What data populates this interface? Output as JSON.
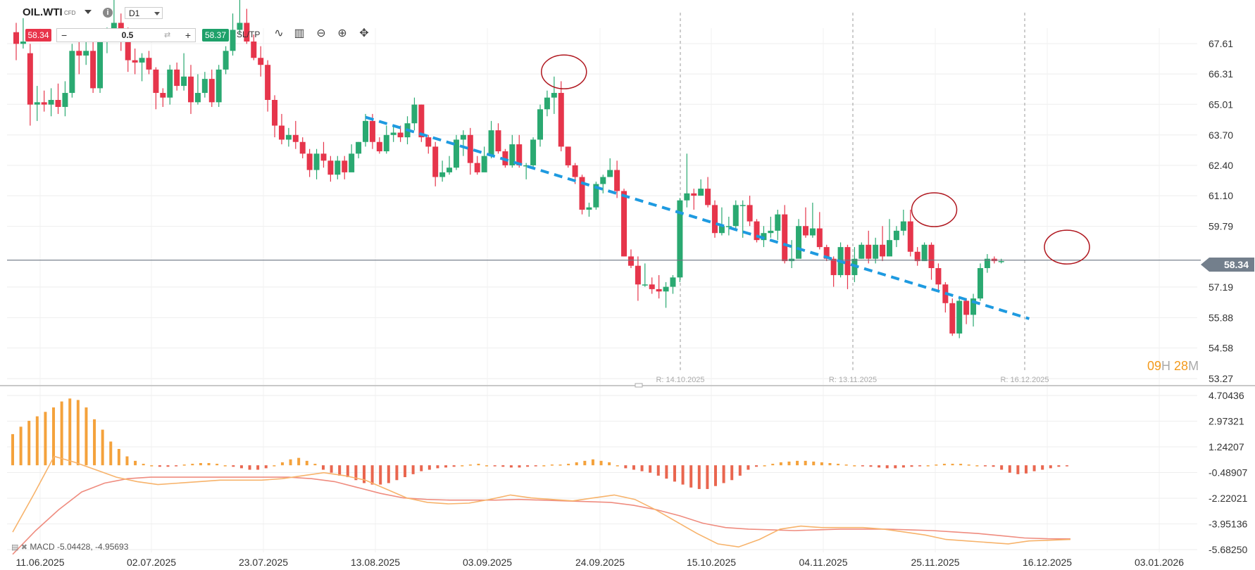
{
  "header": {
    "symbol": "OIL.WTI",
    "symbol_tag": "CFD",
    "info_icon": "info-icon",
    "timeframe": "D1",
    "sell_price": "58.34",
    "quantity": "0.5",
    "buy_price": "58.37",
    "sltp_label": "SL/TP",
    "tools": [
      "line-chart-icon",
      "candles-icon",
      "zoom-out-icon",
      "zoom-in-icon",
      "crosshair-icon"
    ]
  },
  "countdown": {
    "hours": "09",
    "hours_unit": "H",
    "minutes": "28",
    "minutes_unit": "M"
  },
  "current_price_label": "58.34",
  "macd_label": "MACD -5.04428, -4.95693",
  "colors": {
    "up": "#2aa971",
    "down": "#e6354b",
    "trendline": "#1e9ae0",
    "circle": "#b0171f",
    "macd_hist_pos": "#f4a23c",
    "macd_hist_neg": "#e9664f",
    "macd_line": "#f7b36b",
    "signal_line": "#ef8c7f"
  },
  "chart_data": {
    "type": "candlestick",
    "symbol": "OIL.WTI",
    "timeframe": "D1",
    "price_axis": {
      "ticks": [
        "67.61",
        "66.31",
        "65.01",
        "63.70",
        "62.40",
        "61.10",
        "59.79",
        "57.19",
        "55.88",
        "54.58",
        "53.27"
      ]
    },
    "date_axis": {
      "ticks": [
        "11.06.2025",
        "02.07.2025",
        "23.07.2025",
        "13.08.2025",
        "03.09.2025",
        "24.09.2025",
        "15.10.2025",
        "04.11.2025",
        "25.11.2025",
        "16.12.2025",
        "03.01.2026"
      ]
    },
    "rollover_markers": [
      "R: 14.10.2025",
      "R: 13.11.2025",
      "R: 16.12.2025"
    ],
    "last_price": 58.34,
    "candles": [
      [
        68.1,
        67.6,
        68.5,
        66.9
      ],
      [
        67.6,
        67.7,
        68.7,
        67.4
      ],
      [
        67.2,
        65.0,
        67.6,
        64.1
      ],
      [
        65.0,
        65.1,
        65.8,
        64.3
      ],
      [
        65.1,
        65.0,
        65.6,
        64.7
      ],
      [
        65.0,
        65.2,
        65.7,
        64.5
      ],
      [
        65.2,
        64.9,
        65.9,
        64.6
      ],
      [
        64.9,
        65.5,
        66.0,
        64.5
      ],
      [
        65.5,
        67.3,
        67.6,
        65.3
      ],
      [
        67.3,
        67.1,
        67.9,
        66.3
      ],
      [
        67.1,
        67.3,
        68.0,
        66.7
      ],
      [
        67.3,
        65.7,
        67.8,
        65.5
      ],
      [
        65.7,
        67.7,
        68.0,
        65.5
      ],
      [
        67.7,
        68.0,
        68.3,
        67.2
      ],
      [
        68.0,
        68.5,
        69.5,
        67.8
      ],
      [
        68.5,
        68.0,
        68.9,
        67.3
      ],
      [
        68.0,
        66.9,
        68.3,
        66.4
      ],
      [
        66.9,
        66.8,
        67.4,
        66.3
      ],
      [
        66.8,
        67.0,
        67.2,
        66.0
      ],
      [
        67.0,
        66.5,
        67.3,
        66.3
      ],
      [
        66.5,
        65.5,
        66.6,
        64.8
      ],
      [
        65.5,
        65.3,
        65.7,
        64.9
      ],
      [
        65.3,
        66.5,
        66.7,
        65.0
      ],
      [
        66.5,
        65.8,
        66.8,
        65.6
      ],
      [
        65.8,
        66.2,
        67.2,
        65.6
      ],
      [
        66.2,
        65.1,
        66.7,
        64.6
      ],
      [
        65.1,
        65.5,
        66.3,
        65.0
      ],
      [
        65.5,
        66.1,
        66.4,
        65.3
      ],
      [
        66.1,
        65.1,
        66.5,
        64.9
      ],
      [
        65.1,
        66.5,
        66.7,
        64.9
      ],
      [
        66.5,
        67.3,
        67.5,
        66.3
      ],
      [
        67.3,
        68.2,
        68.9,
        67.1
      ],
      [
        68.2,
        68.5,
        69.6,
        68.0
      ],
      [
        68.5,
        67.7,
        69.1,
        67.6
      ],
      [
        67.7,
        67.0,
        68.0,
        66.9
      ],
      [
        67.0,
        66.7,
        67.5,
        66.2
      ],
      [
        66.7,
        65.2,
        66.9,
        64.7
      ],
      [
        65.2,
        64.1,
        65.4,
        63.6
      ],
      [
        64.1,
        63.5,
        64.6,
        63.3
      ],
      [
        63.5,
        63.7,
        64.0,
        63.2
      ],
      [
        63.7,
        63.4,
        64.3,
        63.1
      ],
      [
        63.4,
        62.9,
        63.6,
        62.7
      ],
      [
        62.9,
        62.2,
        63.1,
        61.9
      ],
      [
        62.2,
        62.9,
        63.1,
        61.8
      ],
      [
        62.9,
        62.6,
        63.4,
        62.3
      ],
      [
        62.6,
        62.0,
        62.8,
        61.7
      ],
      [
        62.0,
        62.6,
        62.8,
        61.8
      ],
      [
        62.6,
        62.1,
        62.8,
        61.8
      ],
      [
        62.1,
        62.9,
        63.3,
        62.6
      ],
      [
        62.9,
        63.4,
        63.4,
        62.7
      ],
      [
        63.4,
        64.3,
        64.6,
        63.2
      ],
      [
        64.3,
        63.4,
        64.6,
        63.1
      ],
      [
        63.4,
        63.0,
        63.6,
        62.9
      ],
      [
        63.0,
        63.7,
        64.1,
        62.9
      ],
      [
        63.7,
        63.8,
        64.1,
        63.4
      ],
      [
        63.8,
        63.6,
        64.1,
        63.4
      ],
      [
        63.6,
        64.2,
        64.5,
        63.3
      ],
      [
        64.2,
        65.0,
        65.3,
        63.9
      ],
      [
        65.0,
        63.6,
        65.0,
        63.4
      ],
      [
        63.6,
        63.2,
        63.7,
        62.9
      ],
      [
        63.2,
        61.9,
        63.4,
        61.5
      ],
      [
        61.9,
        62.1,
        62.6,
        61.7
      ],
      [
        62.1,
        62.3,
        62.8,
        62.0
      ],
      [
        62.3,
        63.5,
        63.7,
        62.2
      ],
      [
        63.5,
        63.7,
        63.9,
        62.8
      ],
      [
        63.7,
        62.5,
        64.0,
        62.0
      ],
      [
        62.5,
        62.1,
        62.8,
        62.0
      ],
      [
        62.1,
        62.8,
        63.2,
        62.7
      ],
      [
        62.8,
        63.9,
        64.3,
        62.7
      ],
      [
        63.9,
        63.0,
        64.2,
        62.9
      ],
      [
        63.0,
        62.4,
        63.1,
        62.3
      ],
      [
        62.4,
        63.3,
        63.7,
        62.3
      ],
      [
        63.3,
        62.4,
        63.7,
        62.3
      ],
      [
        62.4,
        62.4,
        62.5,
        61.8
      ],
      [
        62.4,
        63.5,
        63.6,
        62.3
      ],
      [
        63.5,
        64.8,
        65.0,
        63.2
      ],
      [
        64.8,
        65.3,
        65.6,
        64.5
      ],
      [
        65.3,
        65.5,
        66.2,
        64.6
      ],
      [
        65.5,
        63.2,
        66.0,
        63.0
      ],
      [
        63.2,
        62.4,
        63.2,
        62.3
      ],
      [
        62.4,
        61.9,
        62.5,
        61.6
      ],
      [
        61.9,
        60.5,
        62.0,
        60.3
      ],
      [
        60.5,
        60.6,
        60.8,
        60.2
      ],
      [
        60.6,
        61.6,
        61.7,
        60.5
      ],
      [
        61.6,
        61.9,
        62.0,
        61.2
      ],
      [
        61.9,
        62.2,
        62.7,
        61.9
      ],
      [
        62.2,
        61.3,
        62.6,
        61.0
      ],
      [
        61.3,
        58.5,
        61.4,
        58.5
      ],
      [
        58.5,
        58.1,
        58.8,
        58.0
      ],
      [
        58.1,
        57.3,
        58.5,
        56.6
      ],
      [
        57.3,
        57.3,
        58.2,
        57.2
      ],
      [
        57.3,
        57.1,
        57.6,
        56.9
      ],
      [
        57.1,
        57.0,
        57.7,
        56.7
      ],
      [
        57.0,
        57.2,
        57.4,
        56.3
      ],
      [
        57.2,
        57.6,
        57.7,
        56.9
      ],
      [
        57.6,
        60.9,
        61.0,
        57.4
      ],
      [
        60.9,
        61.2,
        62.9,
        60.6
      ],
      [
        61.2,
        61.1,
        61.4,
        60.5
      ],
      [
        61.1,
        61.4,
        61.8,
        61.1
      ],
      [
        61.4,
        60.7,
        61.9,
        60.6
      ],
      [
        60.7,
        59.5,
        60.9,
        59.3
      ],
      [
        59.5,
        59.8,
        60.6,
        59.4
      ],
      [
        59.8,
        59.8,
        60.2,
        59.4
      ],
      [
        59.8,
        60.7,
        60.9,
        59.7
      ],
      [
        60.7,
        60.7,
        60.9,
        59.3
      ],
      [
        60.7,
        60.0,
        61.1,
        59.8
      ],
      [
        60.0,
        59.2,
        60.1,
        59.1
      ],
      [
        59.2,
        59.5,
        59.8,
        58.9
      ],
      [
        59.5,
        59.6,
        60.2,
        59.3
      ],
      [
        59.6,
        60.3,
        60.5,
        59.2
      ],
      [
        60.3,
        58.3,
        60.7,
        58.2
      ],
      [
        58.3,
        58.4,
        59.2,
        58.0
      ],
      [
        58.4,
        59.8,
        60.1,
        58.5
      ],
      [
        59.8,
        59.4,
        60.6,
        59.3
      ],
      [
        59.4,
        59.7,
        60.8,
        59.3
      ],
      [
        59.7,
        58.9,
        60.4,
        58.8
      ],
      [
        58.9,
        58.4,
        59.0,
        58.3
      ],
      [
        58.4,
        57.7,
        58.5,
        57.2
      ],
      [
        57.7,
        58.9,
        59.1,
        57.6
      ],
      [
        58.9,
        57.7,
        59.0,
        57.1
      ],
      [
        57.7,
        58.4,
        58.9,
        57.4
      ],
      [
        58.4,
        59.0,
        59.1,
        58.4
      ],
      [
        59.0,
        58.4,
        59.6,
        58.2
      ],
      [
        58.4,
        59.0,
        59.3,
        58.2
      ],
      [
        59.0,
        58.5,
        59.8,
        58.3
      ],
      [
        58.5,
        59.2,
        60.1,
        58.8
      ],
      [
        59.2,
        59.6,
        59.8,
        58.9
      ],
      [
        59.6,
        60.0,
        60.5,
        59.4
      ],
      [
        60.0,
        58.7,
        60.5,
        58.5
      ],
      [
        58.7,
        58.3,
        58.9,
        58.1
      ],
      [
        58.3,
        59.0,
        59.1,
        58.3
      ],
      [
        59.0,
        58.0,
        59.1,
        57.5
      ],
      [
        58.0,
        57.3,
        58.2,
        57.0
      ],
      [
        57.3,
        56.5,
        57.4,
        56.1
      ],
      [
        56.5,
        55.2,
        56.7,
        55.1
      ],
      [
        55.2,
        56.6,
        56.7,
        55.0
      ],
      [
        56.6,
        56.0,
        56.7,
        55.6
      ],
      [
        56.0,
        56.7,
        56.9,
        55.5
      ],
      [
        56.7,
        58.0,
        58.2,
        56.6
      ],
      [
        58.0,
        58.4,
        58.6,
        57.8
      ],
      [
        58.4,
        58.3,
        58.5,
        58.2
      ],
      [
        58.3,
        58.3,
        58.4,
        58.2
      ]
    ],
    "macd": {
      "label": "MACD -5.04428, -4.95693",
      "axis_ticks": [
        "4.70436",
        "2.97321",
        "1.24207",
        "-0.48907",
        "-2.22021",
        "-3.95136",
        "-5.68250"
      ],
      "histogram": [
        2.1,
        2.6,
        3.0,
        3.3,
        3.6,
        3.9,
        4.3,
        4.5,
        4.4,
        3.9,
        3.1,
        2.4,
        1.6,
        1.1,
        0.6,
        0.3,
        0.1,
        0.0,
        -0.1,
        -0.1,
        -0.05,
        0.05,
        0.1,
        0.15,
        0.15,
        0.1,
        0.0,
        -0.1,
        -0.2,
        -0.3,
        -0.3,
        -0.2,
        0.0,
        0.2,
        0.4,
        0.5,
        0.3,
        0.1,
        -0.3,
        -0.5,
        -0.7,
        -0.8,
        -1.0,
        -1.2,
        -1.3,
        -1.3,
        -1.2,
        -1.0,
        -0.8,
        -0.6,
        -0.4,
        -0.3,
        -0.2,
        -0.15,
        -0.1,
        0.0,
        0.05,
        0.1,
        0.0,
        -0.05,
        -0.1,
        -0.15,
        -0.15,
        -0.1,
        -0.05,
        0.0,
        0.05,
        0.05,
        0.1,
        0.2,
        0.3,
        0.4,
        0.3,
        0.2,
        0.0,
        -0.2,
        -0.3,
        -0.4,
        -0.5,
        -0.7,
        -0.9,
        -1.1,
        -1.3,
        -1.5,
        -1.6,
        -1.6,
        -1.4,
        -1.2,
        -1.0,
        -0.7,
        -0.3,
        -0.1,
        0.0,
        0.1,
        0.2,
        0.25,
        0.3,
        0.3,
        0.25,
        0.2,
        0.15,
        0.1,
        0.05,
        0.0,
        -0.05,
        -0.1,
        -0.15,
        -0.2,
        -0.2,
        -0.15,
        -0.1,
        -0.05,
        0.0,
        0.05,
        0.1,
        0.1,
        0.1,
        0.05,
        0.0,
        -0.05,
        -0.1,
        -0.3,
        -0.5,
        -0.6,
        -0.55,
        -0.4,
        -0.3,
        -0.2,
        -0.1,
        -0.05
      ],
      "macd_line": [
        -4.5,
        -2.0,
        0.6,
        0.2,
        -0.3,
        -0.8,
        -1.1,
        -1.3,
        -1.2,
        -1.1,
        -1.0,
        -1.0,
        -1.0,
        -0.9,
        -0.7,
        -0.5,
        -0.7,
        -1.0,
        -1.6,
        -2.2,
        -2.5,
        -2.6,
        -2.55,
        -2.3,
        -2.0,
        -2.2,
        -2.3,
        -2.4,
        -2.2,
        -2.0,
        -2.3,
        -3.0,
        -3.8,
        -4.6,
        -5.3,
        -5.5,
        -5.0,
        -4.3,
        -4.1,
        -4.2,
        -4.2,
        -4.2,
        -4.3,
        -4.5,
        -4.7,
        -5.0,
        -5.1,
        -5.2,
        -5.3,
        -5.1,
        -5.05,
        -5.0
      ],
      "signal_line": [
        -6.0,
        -4.4,
        -3.0,
        -1.8,
        -1.2,
        -0.9,
        -0.8,
        -0.8,
        -0.8,
        -0.8,
        -0.8,
        -0.8,
        -0.8,
        -0.9,
        -1.1,
        -1.5,
        -1.9,
        -2.2,
        -2.3,
        -2.35,
        -2.35,
        -2.35,
        -2.3,
        -2.35,
        -2.4,
        -2.45,
        -2.5,
        -2.7,
        -3.0,
        -3.4,
        -3.9,
        -4.2,
        -4.3,
        -4.35,
        -4.4,
        -4.35,
        -4.3,
        -4.3,
        -4.3,
        -4.35,
        -4.4,
        -4.5,
        -4.6,
        -4.75,
        -4.9,
        -4.95,
        -4.96
      ]
    },
    "annotations": {
      "trendline": "descending",
      "circled_touches": 3
    }
  }
}
